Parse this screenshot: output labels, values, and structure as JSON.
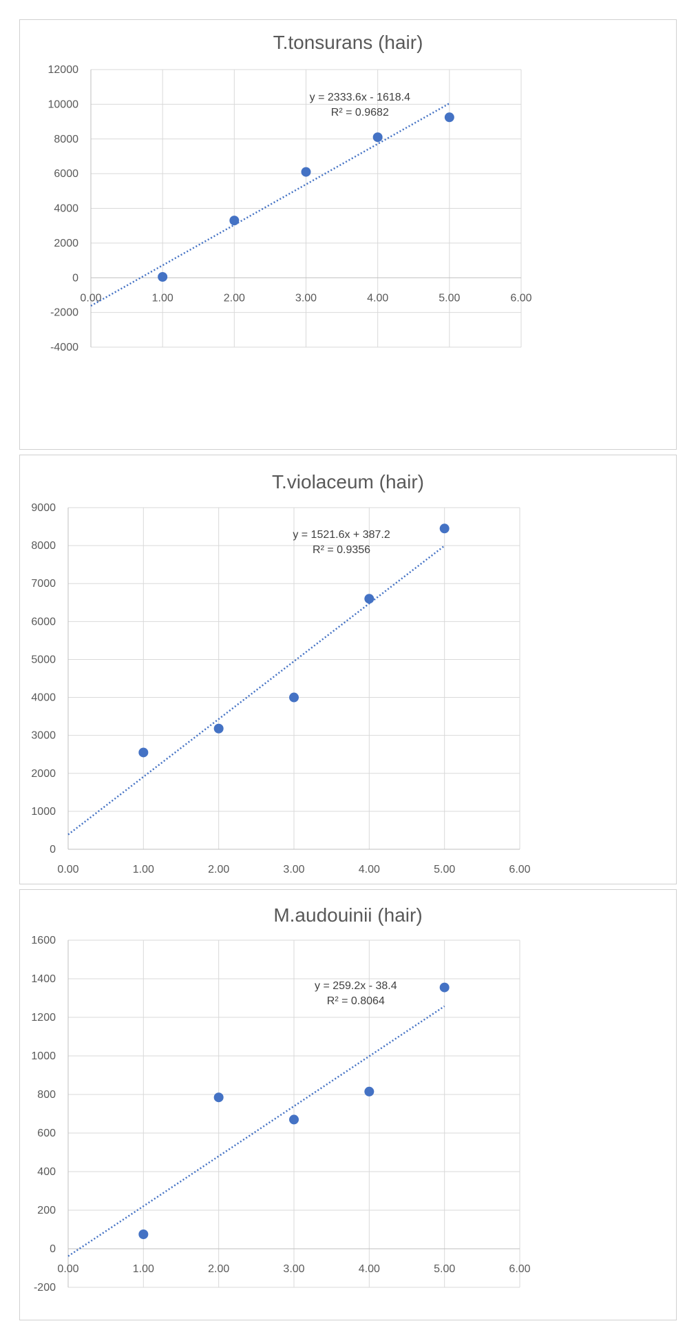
{
  "colors": {
    "marker": "#4472c4",
    "trendline": "#4472c4",
    "grid": "#d9d9d9",
    "axis": "#bfbfbf",
    "text": "#595959"
  },
  "chart_data": [
    {
      "type": "scatter",
      "title": "T.tonsurans (hair)",
      "xlabel": "",
      "ylabel": "",
      "xlim": [
        0,
        6
      ],
      "ylim": [
        -4000,
        12000
      ],
      "x_ticks": [
        "0.00",
        "1.00",
        "2.00",
        "3.00",
        "4.00",
        "5.00",
        "6.00"
      ],
      "y_ticks": [
        "-4000",
        "-2000",
        "0",
        "2000",
        "4000",
        "6000",
        "8000",
        "10000",
        "12000"
      ],
      "grid": true,
      "points": [
        {
          "x": 1,
          "y": 50
        },
        {
          "x": 2,
          "y": 3300
        },
        {
          "x": 3,
          "y": 6100
        },
        {
          "x": 4,
          "y": 8100
        },
        {
          "x": 5,
          "y": 9250
        }
      ],
      "trendline": {
        "slope": 2333.6,
        "intercept": -1618.4,
        "x_range": [
          0,
          5
        ],
        "style": "dotted"
      },
      "equation": "y = 2333.6x - 1618.4",
      "r_squared": "R² = 0.9682"
    },
    {
      "type": "scatter",
      "title": "T.violaceum (hair)",
      "xlabel": "",
      "ylabel": "",
      "xlim": [
        0,
        6
      ],
      "ylim": [
        0,
        9000
      ],
      "x_ticks": [
        "0.00",
        "1.00",
        "2.00",
        "3.00",
        "4.00",
        "5.00",
        "6.00"
      ],
      "y_ticks": [
        "0",
        "1000",
        "2000",
        "3000",
        "4000",
        "5000",
        "6000",
        "7000",
        "8000",
        "9000"
      ],
      "grid": true,
      "points": [
        {
          "x": 1,
          "y": 2550
        },
        {
          "x": 2,
          "y": 3180
        },
        {
          "x": 3,
          "y": 4000
        },
        {
          "x": 4,
          "y": 6600
        },
        {
          "x": 5,
          "y": 8450
        }
      ],
      "trendline": {
        "slope": 1521.6,
        "intercept": 387.2,
        "x_range": [
          0,
          5
        ],
        "style": "dotted"
      },
      "equation": "y = 1521.6x + 387.2",
      "r_squared": "R² = 0.9356"
    },
    {
      "type": "scatter",
      "title": "M.audouinii (hair)",
      "xlabel": "",
      "ylabel": "",
      "xlim": [
        0,
        6
      ],
      "ylim": [
        -200,
        1600
      ],
      "x_ticks": [
        "0.00",
        "1.00",
        "2.00",
        "3.00",
        "4.00",
        "5.00",
        "6.00"
      ],
      "y_ticks": [
        "-200",
        "0",
        "200",
        "400",
        "600",
        "800",
        "1000",
        "1200",
        "1400",
        "1600"
      ],
      "grid": true,
      "points": [
        {
          "x": 1,
          "y": 75
        },
        {
          "x": 2,
          "y": 785
        },
        {
          "x": 3,
          "y": 670
        },
        {
          "x": 4,
          "y": 815
        },
        {
          "x": 5,
          "y": 1355
        }
      ],
      "trendline": {
        "slope": 259.2,
        "intercept": -38.4,
        "x_range": [
          0,
          5
        ],
        "style": "dotted"
      },
      "equation": "y = 259.2x - 38.4",
      "r_squared": "R² = 0.8064"
    }
  ]
}
